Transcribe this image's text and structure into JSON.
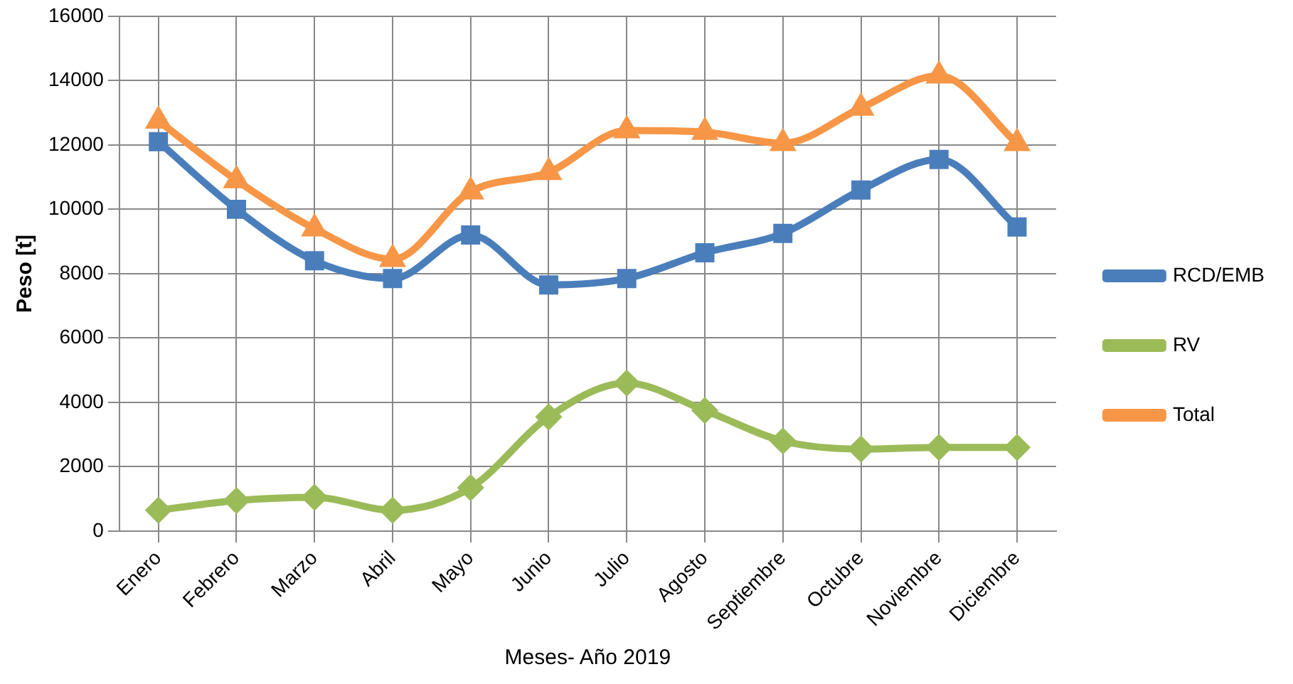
{
  "chart_data": {
    "type": "line",
    "xlabel": "Meses- Año 2019",
    "ylabel": "Peso [t]",
    "categories": [
      "Enero",
      "Febrero",
      "Marzo",
      "Abril",
      "Mayo",
      "Junio",
      "Julio",
      "Agosto",
      "Septiembre",
      "Octubre",
      "Noviembre",
      "Diciembre"
    ],
    "series": [
      {
        "name": "RCD/EMB",
        "color": "#4a7ebb",
        "marker": "square",
        "values": [
          12100,
          10000,
          8400,
          7850,
          9200,
          7650,
          7850,
          8650,
          9250,
          10600,
          11550,
          9450
        ]
      },
      {
        "name": "RV",
        "color": "#9bbb59",
        "marker": "diamond",
        "values": [
          650,
          950,
          1050,
          650,
          1350,
          3550,
          4600,
          3750,
          2800,
          2550,
          2600,
          2600
        ]
      },
      {
        "name": "Total",
        "color": "#f79646",
        "marker": "triangle",
        "values": [
          12750,
          10900,
          9400,
          8450,
          10550,
          11150,
          12450,
          12400,
          12050,
          13150,
          14150,
          12050
        ]
      }
    ],
    "ylim": [
      0,
      16000
    ],
    "yticks": [
      0,
      2000,
      4000,
      6000,
      8000,
      10000,
      12000,
      14000,
      16000
    ],
    "grid": true,
    "legend": "right",
    "line_style": "solid"
  }
}
